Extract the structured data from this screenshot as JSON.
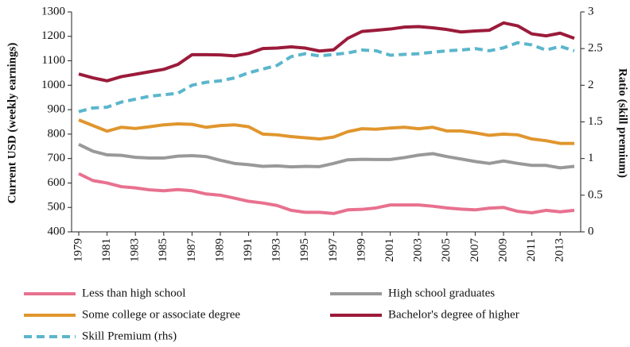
{
  "chart_data": {
    "type": "line",
    "y_label": "Current USD  (weekly earnings)",
    "y2_label": "Ratio (skill premium)",
    "x": [
      1979,
      1980,
      1981,
      1982,
      1983,
      1984,
      1985,
      1986,
      1987,
      1988,
      1989,
      1990,
      1991,
      1992,
      1993,
      1994,
      1995,
      1996,
      1997,
      1998,
      1999,
      2000,
      2001,
      2002,
      2003,
      2004,
      2005,
      2006,
      2007,
      2008,
      2009,
      2010,
      2011,
      2012,
      2013,
      2014
    ],
    "xlim": [
      1979,
      2014
    ],
    "xticks": [
      1979,
      1981,
      1983,
      1985,
      1987,
      1989,
      1991,
      1993,
      1995,
      1997,
      1999,
      2001,
      2003,
      2005,
      2007,
      2009,
      2011,
      2013
    ],
    "ylim": [
      400,
      1300
    ],
    "yticks": [
      400,
      500,
      600,
      700,
      800,
      900,
      1000,
      1100,
      1200,
      1300
    ],
    "y2lim": [
      0,
      3
    ],
    "y2ticks": [
      0,
      0.5,
      1,
      1.5,
      2,
      2.5,
      3
    ],
    "series": [
      {
        "name": "Less than high school",
        "color": "#e8718f",
        "style": "solid",
        "values": [
          638,
          610,
          600,
          585,
          580,
          572,
          568,
          573,
          568,
          555,
          550,
          538,
          525,
          518,
          508,
          488,
          480,
          480,
          475,
          490,
          492,
          498,
          510,
          510,
          510,
          505,
          498,
          493,
          490,
          497,
          500,
          484,
          478,
          488,
          482,
          488
        ]
      },
      {
        "name": "High school graduates",
        "color": "#999999",
        "style": "solid",
        "values": [
          758,
          730,
          715,
          713,
          705,
          702,
          702,
          710,
          712,
          708,
          693,
          680,
          675,
          668,
          670,
          666,
          668,
          667,
          680,
          695,
          697,
          696,
          696,
          704,
          714,
          720,
          708,
          698,
          688,
          680,
          690,
          680,
          672,
          672,
          662,
          668
        ]
      },
      {
        "name": "Some college or associate degree",
        "color": "#e0962e",
        "style": "solid",
        "values": [
          858,
          835,
          812,
          828,
          823,
          830,
          838,
          842,
          840,
          828,
          835,
          838,
          830,
          800,
          797,
          790,
          785,
          780,
          788,
          810,
          822,
          820,
          825,
          828,
          822,
          828,
          813,
          813,
          805,
          795,
          800,
          797,
          780,
          773,
          762,
          762
        ]
      },
      {
        "name": "Bachelor's degree of higher",
        "color": "#9b1b3a",
        "style": "solid",
        "values": [
          1046,
          1030,
          1018,
          1035,
          1045,
          1055,
          1065,
          1085,
          1125,
          1125,
          1124,
          1120,
          1130,
          1150,
          1152,
          1157,
          1152,
          1140,
          1145,
          1192,
          1220,
          1225,
          1230,
          1238,
          1240,
          1235,
          1228,
          1218,
          1222,
          1225,
          1255,
          1243,
          1210,
          1202,
          1213,
          1192
        ]
      },
      {
        "name": "Skill Premium (rhs)",
        "color": "#5bb6cc",
        "style": "dashed",
        "axis": "y2",
        "values": [
          1.64,
          1.69,
          1.7,
          1.77,
          1.81,
          1.85,
          1.87,
          1.89,
          2.0,
          2.04,
          2.06,
          2.1,
          2.17,
          2.22,
          2.27,
          2.39,
          2.43,
          2.4,
          2.42,
          2.44,
          2.48,
          2.47,
          2.41,
          2.42,
          2.43,
          2.45,
          2.47,
          2.48,
          2.5,
          2.47,
          2.51,
          2.58,
          2.55,
          2.48,
          2.53,
          2.47
        ]
      }
    ]
  }
}
